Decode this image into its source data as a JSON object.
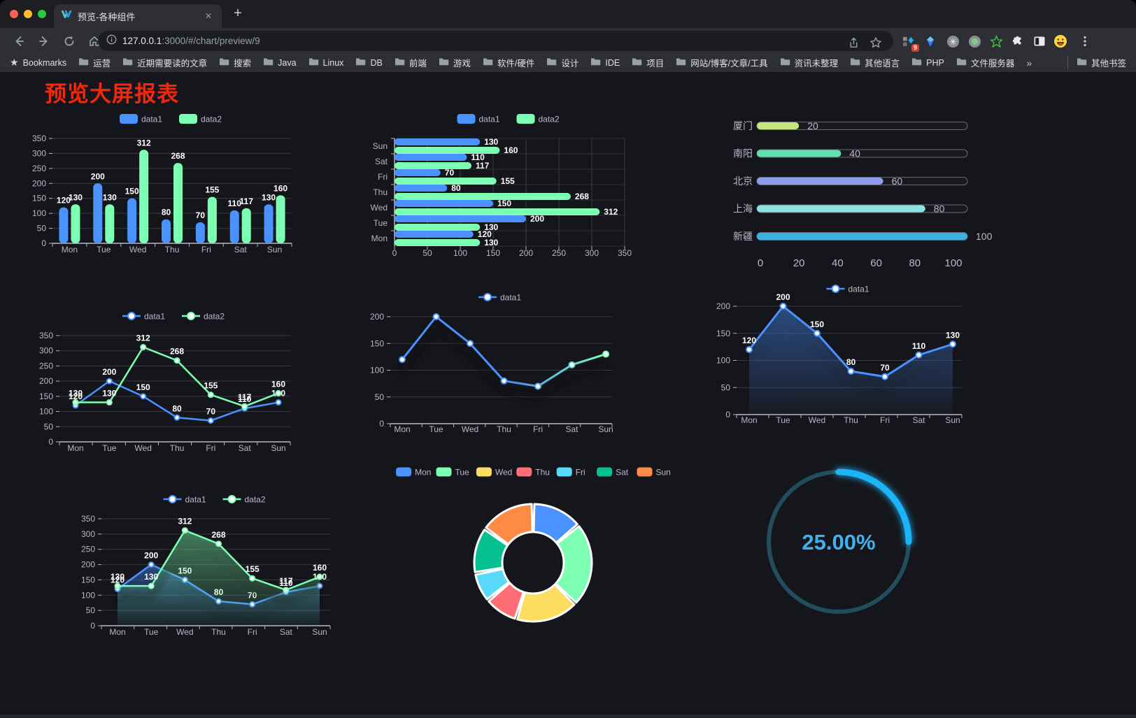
{
  "browser": {
    "traffic_lights": [
      "#ff5f57",
      "#febc2e",
      "#28c840"
    ],
    "tab": {
      "title": "预览-各种组件",
      "close_glyph": "✕",
      "new_tab_glyph": "+"
    },
    "url": "127.0.0.1:3000/#/chart/preview/9",
    "url_host": "127.0.0.1",
    "url_rest": ":3000/#/chart/preview/9",
    "bookmarks_label": "Bookmarks",
    "bookmarks": [
      "运营",
      "近期需要读的文章",
      "搜索",
      "Java",
      "Linux",
      "DB",
      "前端",
      "游戏",
      "软件/硬件",
      "设计",
      "IDE",
      "项目",
      "网站/博客/文章/工具",
      "资讯未整理",
      "其他语言",
      "PHP",
      "文件服务器"
    ],
    "bookmarks_overflow": "»",
    "other_bookmarks": "其他书签",
    "extension_badge": "9"
  },
  "page": {
    "title": "预览大屏报表",
    "title_color": "#f5270b"
  },
  "chart_data": [
    {
      "id": "bar-grouped",
      "type": "bar",
      "categories": [
        "Mon",
        "Tue",
        "Wed",
        "Thu",
        "Fri",
        "Sat",
        "Sun"
      ],
      "series": [
        {
          "name": "data1",
          "color": "#4992ff",
          "values": [
            120,
            200,
            150,
            80,
            70,
            110,
            130
          ]
        },
        {
          "name": "data2",
          "color": "#7cffb2",
          "values": [
            130,
            130,
            312,
            268,
            155,
            117,
            160
          ]
        }
      ],
      "ylim": [
        0,
        350
      ],
      "yticks": [
        0,
        50,
        100,
        150,
        200,
        250,
        300,
        350
      ],
      "legend_position": "top",
      "value_labels": true,
      "grid": true
    },
    {
      "id": "bar-horizontal",
      "type": "bar",
      "orientation": "horizontal",
      "categories": [
        "Mon",
        "Tue",
        "Wed",
        "Thu",
        "Fri",
        "Sat",
        "Sun"
      ],
      "categories_top_to_bottom": [
        "Sun",
        "Sat",
        "Fri",
        "Thu",
        "Wed",
        "Tue",
        "Mon"
      ],
      "series": [
        {
          "name": "data1",
          "color": "#4992ff",
          "values": [
            120,
            200,
            150,
            80,
            70,
            110,
            130
          ]
        },
        {
          "name": "data2",
          "color": "#7cffb2",
          "values": [
            130,
            130,
            312,
            268,
            155,
            117,
            160
          ]
        }
      ],
      "xlim": [
        0,
        350
      ],
      "xticks": [
        0,
        50,
        100,
        150,
        200,
        250,
        300,
        350
      ],
      "legend_position": "top",
      "value_labels": true,
      "grid": true
    },
    {
      "id": "progress-list",
      "type": "bar",
      "subtype": "progress-pills",
      "categories": [
        "厦门",
        "南阳",
        "北京",
        "上海",
        "新疆"
      ],
      "values": [
        20,
        40,
        60,
        80,
        100
      ],
      "colors": [
        "#c3e57e",
        "#5fe0ae",
        "#8f9bee",
        "#8ee3e1",
        "#39b2e2"
      ],
      "xlim": [
        0,
        100
      ],
      "xticks": [
        0,
        20,
        40,
        60,
        80,
        100
      ],
      "value_labels": true
    },
    {
      "id": "line-two",
      "type": "line",
      "categories": [
        "Mon",
        "Tue",
        "Wed",
        "Thu",
        "Fri",
        "Sat",
        "Sun"
      ],
      "series": [
        {
          "name": "data1",
          "color": "#4992ff",
          "values": [
            120,
            200,
            150,
            80,
            70,
            110,
            130
          ]
        },
        {
          "name": "data2",
          "color": "#7cffb2",
          "values": [
            130,
            130,
            312,
            268,
            155,
            117,
            160
          ]
        }
      ],
      "ylim": [
        0,
        350
      ],
      "yticks": [
        0,
        50,
        100,
        150,
        200,
        250,
        300,
        350
      ],
      "legend_position": "top",
      "value_labels": true,
      "grid": true
    },
    {
      "id": "line-gradient",
      "type": "line",
      "categories": [
        "Mon",
        "Tue",
        "Wed",
        "Thu",
        "Fri",
        "Sat",
        "Sun"
      ],
      "series": [
        {
          "name": "data1",
          "color": "#4992ff",
          "color_end": "#7cffb2",
          "values": [
            120,
            200,
            150,
            80,
            70,
            110,
            130
          ]
        }
      ],
      "ylim": [
        0,
        200
      ],
      "yticks": [
        0,
        50,
        100,
        150,
        200
      ],
      "legend_position": "top",
      "value_labels": false,
      "grid": true
    },
    {
      "id": "area-single",
      "type": "area",
      "categories": [
        "Mon",
        "Tue",
        "Wed",
        "Thu",
        "Fri",
        "Sat",
        "Sun"
      ],
      "series": [
        {
          "name": "data1",
          "color": "#4992ff",
          "area": true,
          "values": [
            120,
            200,
            150,
            80,
            70,
            110,
            130
          ]
        }
      ],
      "ylim": [
        0,
        200
      ],
      "yticks": [
        0,
        50,
        100,
        150,
        200
      ],
      "legend_position": "top",
      "value_labels": true,
      "grid": true
    },
    {
      "id": "area-two",
      "type": "area",
      "categories": [
        "Mon",
        "Tue",
        "Wed",
        "Thu",
        "Fri",
        "Sat",
        "Sun"
      ],
      "series": [
        {
          "name": "data1",
          "color": "#4992ff",
          "area": true,
          "values": [
            120,
            200,
            150,
            80,
            70,
            110,
            130
          ]
        },
        {
          "name": "data2",
          "color": "#7cffb2",
          "area": true,
          "values": [
            130,
            130,
            312,
            268,
            155,
            117,
            160
          ]
        }
      ],
      "ylim": [
        0,
        350
      ],
      "yticks": [
        0,
        50,
        100,
        150,
        200,
        250,
        300,
        350
      ],
      "legend_position": "top",
      "value_labels": true,
      "grid": true
    },
    {
      "id": "donut",
      "type": "pie",
      "labels": [
        "Mon",
        "Tue",
        "Wed",
        "Thu",
        "Fri",
        "Sat",
        "Sun"
      ],
      "values": [
        120,
        200,
        150,
        80,
        70,
        110,
        130
      ],
      "colors": [
        "#4992ff",
        "#7cffb2",
        "#fddd60",
        "#ff6e76",
        "#58d9f9",
        "#05c091",
        "#ff8a45"
      ],
      "inner_radius_ratio": 0.52,
      "legend_position": "top"
    },
    {
      "id": "gauge",
      "type": "gauge",
      "percent": 25,
      "label": "25.00%",
      "color": "#1db3f7",
      "track_color": "#224d5c",
      "text_color": "#41b1ee"
    }
  ]
}
